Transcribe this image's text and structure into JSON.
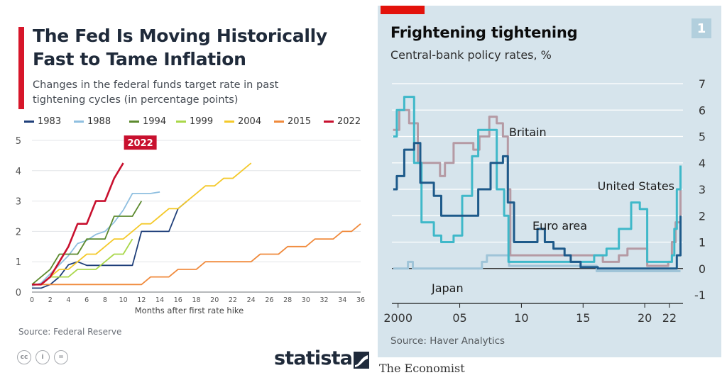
{
  "left_panel": {
    "title_line1": "The Fed Is Moving Historically",
    "title_line2": "Fast to Tame Inflation",
    "subtitle_line1": "Changes in the federal funds target rate in past",
    "subtitle_line2": "tightening cycles (in percentage points)",
    "source": "Source: Federal Reserve",
    "brand": "statista",
    "brand_color": "#1f2a3a",
    "accent_color": "#d7162a",
    "cc_icons": [
      "cc-icon",
      "person-icon",
      "equals-icon"
    ],
    "cc_glyphs": [
      "cc",
      "i",
      "="
    ]
  },
  "right_panel": {
    "title": "Frightening tightening",
    "subtitle": "Central-bank policy rates, %",
    "badge": "1",
    "source": "Source: Haver Analytics",
    "brand": "The Economist",
    "accent_color": "#e3120b",
    "background_color": "#d6e4ec"
  },
  "chart_data": [
    {
      "type": "line",
      "title": "The Fed Is Moving Historically Fast to Tame Inflation",
      "subtitle": "Changes in the federal funds target rate in past tightening cycles (in percentage points)",
      "xlabel": "Months after first rate hike",
      "ylabel": "",
      "xlim": [
        0,
        36
      ],
      "ylim": [
        0,
        5
      ],
      "xticks": [
        0,
        2,
        4,
        6,
        8,
        10,
        12,
        14,
        16,
        18,
        20,
        22,
        24,
        26,
        28,
        30,
        32,
        34,
        36
      ],
      "yticks": [
        0,
        1,
        2,
        3,
        4,
        5
      ],
      "grid": "horizontal",
      "legend": "top",
      "annotation": "2022",
      "series": [
        {
          "name": "1983",
          "color": "#1f3f7a",
          "points": [
            [
              0,
              0.13
            ],
            [
              1,
              0.13
            ],
            [
              2,
              0.25
            ],
            [
              3,
              0.5
            ],
            [
              4,
              0.9
            ],
            [
              5,
              1.0
            ],
            [
              6,
              0.88
            ],
            [
              7,
              0.88
            ],
            [
              8,
              0.88
            ],
            [
              9,
              0.88
            ],
            [
              10,
              0.88
            ],
            [
              11,
              0.88
            ],
            [
              12,
              2.0
            ],
            [
              13,
              2.0
            ],
            [
              14,
              2.0
            ],
            [
              15,
              2.0
            ],
            [
              16,
              2.75
            ],
            [
              17,
              3.0
            ]
          ]
        },
        {
          "name": "1988",
          "color": "#8fbfe0",
          "points": [
            [
              0,
              0.2
            ],
            [
              1,
              0.3
            ],
            [
              2,
              0.6
            ],
            [
              3,
              0.9
            ],
            [
              4,
              1.2
            ],
            [
              5,
              1.6
            ],
            [
              6,
              1.7
            ],
            [
              7,
              1.9
            ],
            [
              8,
              2.0
            ],
            [
              9,
              2.3
            ],
            [
              10,
              2.7
            ],
            [
              11,
              3.25
            ],
            [
              12,
              3.25
            ],
            [
              13,
              3.25
            ],
            [
              14,
              3.3
            ]
          ]
        },
        {
          "name": "1994",
          "color": "#5c8a2e",
          "points": [
            [
              0,
              0.25
            ],
            [
              1,
              0.5
            ],
            [
              2,
              0.75
            ],
            [
              3,
              1.25
            ],
            [
              4,
              1.25
            ],
            [
              5,
              1.25
            ],
            [
              6,
              1.75
            ],
            [
              7,
              1.75
            ],
            [
              8,
              1.75
            ],
            [
              9,
              2.5
            ],
            [
              10,
              2.5
            ],
            [
              11,
              2.5
            ],
            [
              12,
              3.0
            ]
          ]
        },
        {
          "name": "1999",
          "color": "#a9d74a",
          "points": [
            [
              0,
              0.25
            ],
            [
              1,
              0.25
            ],
            [
              2,
              0.5
            ],
            [
              3,
              0.5
            ],
            [
              4,
              0.5
            ],
            [
              5,
              0.75
            ],
            [
              6,
              0.75
            ],
            [
              7,
              0.75
            ],
            [
              8,
              1.0
            ],
            [
              9,
              1.25
            ],
            [
              10,
              1.25
            ],
            [
              11,
              1.75
            ]
          ]
        },
        {
          "name": "2004",
          "color": "#f4c92a",
          "points": [
            [
              0,
              0.25
            ],
            [
              1,
              0.25
            ],
            [
              2,
              0.5
            ],
            [
              3,
              0.75
            ],
            [
              4,
              0.75
            ],
            [
              5,
              1.0
            ],
            [
              6,
              1.25
            ],
            [
              7,
              1.25
            ],
            [
              8,
              1.5
            ],
            [
              9,
              1.75
            ],
            [
              10,
              1.75
            ],
            [
              11,
              2.0
            ],
            [
              12,
              2.25
            ],
            [
              13,
              2.25
            ],
            [
              14,
              2.5
            ],
            [
              15,
              2.75
            ],
            [
              16,
              2.75
            ],
            [
              17,
              3.0
            ],
            [
              18,
              3.25
            ],
            [
              19,
              3.5
            ],
            [
              20,
              3.5
            ],
            [
              21,
              3.75
            ],
            [
              22,
              3.75
            ],
            [
              23,
              4.0
            ],
            [
              24,
              4.25
            ]
          ]
        },
        {
          "name": "2015",
          "color": "#f08a3c",
          "points": [
            [
              0,
              0.25
            ],
            [
              12,
              0.25
            ],
            [
              13,
              0.5
            ],
            [
              14,
              0.5
            ],
            [
              15,
              0.5
            ],
            [
              16,
              0.75
            ],
            [
              17,
              0.75
            ],
            [
              18,
              0.75
            ],
            [
              19,
              1.0
            ],
            [
              20,
              1.0
            ],
            [
              21,
              1.0
            ],
            [
              22,
              1.0
            ],
            [
              23,
              1.0
            ],
            [
              24,
              1.0
            ],
            [
              25,
              1.25
            ],
            [
              26,
              1.25
            ],
            [
              27,
              1.25
            ],
            [
              28,
              1.5
            ],
            [
              29,
              1.5
            ],
            [
              30,
              1.5
            ],
            [
              31,
              1.75
            ],
            [
              32,
              1.75
            ],
            [
              33,
              1.75
            ],
            [
              34,
              2.0
            ],
            [
              35,
              2.0
            ],
            [
              36,
              2.25
            ]
          ]
        },
        {
          "name": "2022",
          "color": "#c8102e",
          "points": [
            [
              0,
              0.25
            ],
            [
              1,
              0.25
            ],
            [
              2,
              0.5
            ],
            [
              3,
              1.0
            ],
            [
              4,
              1.5
            ],
            [
              5,
              2.25
            ],
            [
              6,
              2.25
            ],
            [
              7,
              3.0
            ],
            [
              8,
              3.0
            ],
            [
              9,
              3.75
            ],
            [
              10,
              4.25
            ]
          ]
        }
      ]
    },
    {
      "type": "line",
      "title": "Frightening tightening",
      "subtitle": "Central-bank policy rates, %",
      "xlabel": "",
      "ylabel": "",
      "xlim": [
        1999.5,
        2023.1
      ],
      "ylim": [
        -1,
        7
      ],
      "xticks": [
        2000,
        2005,
        2010,
        2015,
        2020,
        2022
      ],
      "xtick_labels": [
        "2000",
        "05",
        "10",
        "15",
        "20",
        "22"
      ],
      "yticks": [
        -1,
        0,
        1,
        2,
        3,
        4,
        5,
        6,
        7
      ],
      "grid": "horizontal",
      "legend": "inline labels",
      "series": [
        {
          "name": "Britain",
          "color": "#b59aa4",
          "points": [
            [
              1999.6,
              5.25
            ],
            [
              2000.1,
              6.0
            ],
            [
              2000.9,
              5.5
            ],
            [
              2001.6,
              4.0
            ],
            [
              2002.5,
              4.0
            ],
            [
              2003.4,
              3.5
            ],
            [
              2003.8,
              4.0
            ],
            [
              2004.5,
              4.75
            ],
            [
              2006.1,
              4.5
            ],
            [
              2006.6,
              5.0
            ],
            [
              2007.4,
              5.75
            ],
            [
              2008.0,
              5.5
            ],
            [
              2008.5,
              5.0
            ],
            [
              2008.9,
              3.0
            ],
            [
              2009.1,
              0.5
            ],
            [
              2016.6,
              0.25
            ],
            [
              2017.9,
              0.5
            ],
            [
              2018.6,
              0.75
            ],
            [
              2020.2,
              0.1
            ],
            [
              2021.9,
              0.25
            ],
            [
              2022.2,
              1.0
            ],
            [
              2022.5,
              1.75
            ],
            [
              2022.9,
              3.0
            ]
          ]
        },
        {
          "name": "United States",
          "color": "#3fb8c9",
          "points": [
            [
              1999.6,
              5.0
            ],
            [
              1999.9,
              6.0
            ],
            [
              2000.5,
              6.5
            ],
            [
              2001.3,
              4.0
            ],
            [
              2001.9,
              1.75
            ],
            [
              2002.9,
              1.25
            ],
            [
              2003.5,
              1.0
            ],
            [
              2004.5,
              1.25
            ],
            [
              2005.2,
              2.75
            ],
            [
              2006.0,
              4.25
            ],
            [
              2006.5,
              5.25
            ],
            [
              2007.6,
              5.25
            ],
            [
              2008.0,
              3.0
            ],
            [
              2008.6,
              2.0
            ],
            [
              2008.95,
              0.25
            ],
            [
              2015.9,
              0.5
            ],
            [
              2016.9,
              0.75
            ],
            [
              2017.9,
              1.5
            ],
            [
              2018.9,
              2.5
            ],
            [
              2019.6,
              2.25
            ],
            [
              2020.2,
              0.25
            ],
            [
              2022.2,
              0.5
            ],
            [
              2022.4,
              1.5
            ],
            [
              2022.6,
              3.0
            ],
            [
              2022.9,
              3.9
            ]
          ]
        },
        {
          "name": "Euro area",
          "color": "#1e5a8a",
          "points": [
            [
              1999.6,
              3.0
            ],
            [
              1999.9,
              3.5
            ],
            [
              2000.5,
              4.5
            ],
            [
              2001.3,
              4.75
            ],
            [
              2001.8,
              3.25
            ],
            [
              2002.9,
              2.75
            ],
            [
              2003.5,
              2.0
            ],
            [
              2005.9,
              2.0
            ],
            [
              2006.5,
              3.0
            ],
            [
              2007.5,
              4.0
            ],
            [
              2008.5,
              4.25
            ],
            [
              2008.9,
              2.5
            ],
            [
              2009.4,
              1.0
            ],
            [
              2011.0,
              1.0
            ],
            [
              2011.3,
              1.5
            ],
            [
              2011.9,
              1.0
            ],
            [
              2012.6,
              0.75
            ],
            [
              2013.5,
              0.5
            ],
            [
              2014.0,
              0.25
            ],
            [
              2014.8,
              0.05
            ],
            [
              2016.2,
              0.0
            ],
            [
              2022.5,
              0.0
            ],
            [
              2022.6,
              0.5
            ],
            [
              2022.9,
              2.0
            ]
          ]
        },
        {
          "name": "Japan",
          "color": "#9fc4d8",
          "points": [
            [
              1999.6,
              0.0
            ],
            [
              2000.5,
              0.0
            ],
            [
              2000.8,
              0.25
            ],
            [
              2001.2,
              0.0
            ],
            [
              2006.6,
              0.0
            ],
            [
              2006.8,
              0.25
            ],
            [
              2007.2,
              0.5
            ],
            [
              2008.8,
              0.5
            ],
            [
              2009.0,
              0.1
            ],
            [
              2016.1,
              -0.1
            ],
            [
              2022.9,
              -0.1
            ]
          ]
        }
      ]
    }
  ]
}
